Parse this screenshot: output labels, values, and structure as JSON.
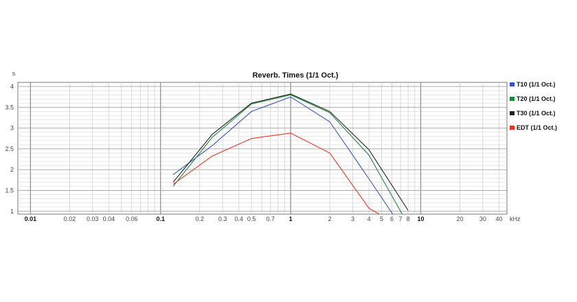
{
  "chart_data": {
    "type": "line",
    "title": "Reverb. Times (1/1 Oct.)",
    "ylabel": "s",
    "xunit": "kHz",
    "xscale": "log",
    "xlim": [
      0.008,
      46
    ],
    "ylim": [
      0.93,
      4.1
    ],
    "grid": true,
    "legend_position": "right",
    "x": [
      0.125,
      0.25,
      0.5,
      1,
      2,
      4,
      8
    ],
    "x_tick_labels": [
      "0.01",
      "0.02",
      "0.03",
      "0.04",
      "0.06",
      "0.1",
      "0.2",
      "0.3",
      "0.4",
      "0.5",
      "0.7",
      "1",
      "2",
      "3",
      "4",
      "5",
      "6",
      "7",
      "8",
      "10",
      "20",
      "30",
      "40"
    ],
    "x_tick_values": [
      0.01,
      0.02,
      0.03,
      0.04,
      0.06,
      0.1,
      0.2,
      0.3,
      0.4,
      0.5,
      0.7,
      1,
      2,
      3,
      4,
      5,
      6,
      7,
      8,
      10,
      20,
      30,
      40
    ],
    "y_tick_labels": [
      "1",
      "1.5",
      "2",
      "2.5",
      "3",
      "3.5",
      "4"
    ],
    "y_tick_values": [
      1,
      1.5,
      2,
      2.5,
      3,
      3.5,
      4
    ],
    "series": [
      {
        "name": "T10 (1/1 Oct.)",
        "color": "#3355cc",
        "x": [
          0.125,
          0.25,
          0.5,
          1,
          2,
          4,
          6.1
        ],
        "values": [
          1.88,
          2.58,
          3.4,
          3.75,
          3.15,
          1.78,
          0.93
        ]
      },
      {
        "name": "T20 (1/1 Oct.)",
        "color": "#1a8a3a",
        "x": [
          0.125,
          0.25,
          0.5,
          1,
          2,
          4,
          7.2
        ],
        "values": [
          1.6,
          2.78,
          3.58,
          3.8,
          3.37,
          2.35,
          0.93
        ]
      },
      {
        "name": "T30 (1/1 Oct.)",
        "color": "#222222",
        "x": [
          0.125,
          0.25,
          0.5,
          1,
          2,
          4,
          8
        ],
        "values": [
          1.7,
          2.85,
          3.6,
          3.82,
          3.4,
          2.48,
          1.02
        ]
      },
      {
        "name": "EDT (1/1 Oct.)",
        "color": "#ee3322",
        "x": [
          0.125,
          0.25,
          0.5,
          1,
          2,
          4,
          4.8
        ],
        "values": [
          1.65,
          2.33,
          2.75,
          2.88,
          2.4,
          1.07,
          0.93
        ]
      }
    ]
  }
}
